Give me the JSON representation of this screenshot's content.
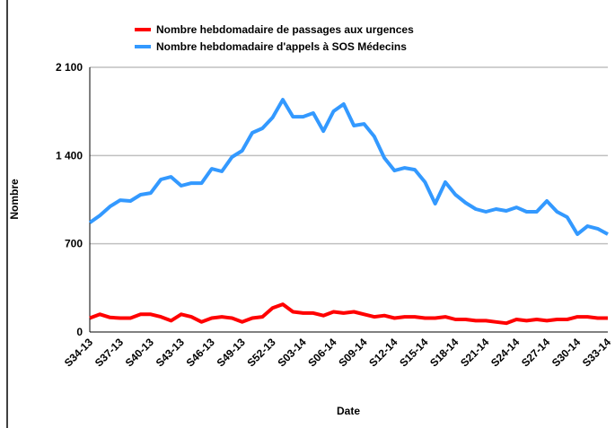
{
  "chart_data": {
    "type": "line",
    "x_label": "Date",
    "y_label": "Nombre",
    "categories": [
      "S34-13",
      null,
      null,
      "S37-13",
      null,
      null,
      "S40-13",
      null,
      null,
      "S43-13",
      null,
      null,
      "S46-13",
      null,
      null,
      "S49-13",
      null,
      null,
      "S52-13",
      null,
      null,
      "S03-14",
      null,
      null,
      "S06-14",
      null,
      null,
      "S09-14",
      null,
      null,
      "S12-14",
      null,
      null,
      "S15-14",
      null,
      null,
      "S18-14",
      null,
      null,
      "S21-14",
      null,
      null,
      "S24-14",
      null,
      null,
      "S27-14",
      null,
      null,
      "S30-14",
      null,
      null,
      "S33-14"
    ],
    "series": [
      {
        "name": "Nombre hebdomadaire de passages aux urgences",
        "color": "#ff0000",
        "values": [
          110,
          140,
          115,
          110,
          110,
          140,
          140,
          120,
          90,
          140,
          120,
          80,
          110,
          120,
          110,
          80,
          110,
          120,
          190,
          220,
          160,
          150,
          150,
          130,
          160,
          150,
          160,
          140,
          120,
          130,
          110,
          120,
          120,
          110,
          110,
          120,
          100,
          100,
          90,
          90,
          80,
          70,
          100,
          90,
          100,
          90,
          100,
          100,
          120,
          120,
          110,
          110
        ]
      },
      {
        "name": "Nombre hebdomadaire d'appels à SOS Médecins",
        "color": "#3399ff",
        "values": [
          868,
          925,
          996,
          1046,
          1039,
          1089,
          1103,
          1210,
          1231,
          1160,
          1181,
          1181,
          1295,
          1274,
          1388,
          1438,
          1580,
          1616,
          1701,
          1843,
          1708,
          1708,
          1737,
          1594,
          1751,
          1808,
          1637,
          1651,
          1552,
          1381,
          1281,
          1302,
          1288,
          1189,
          1018,
          1189,
          1089,
          1025,
          975,
          954,
          975,
          961,
          989,
          954,
          954,
          1039,
          954,
          911,
          776,
          840,
          819,
          776
        ]
      }
    ],
    "ylim": [
      0,
      2100
    ],
    "yticks": [
      0,
      700,
      {
        "value": 1400,
        "label": "1 400"
      },
      {
        "value": 2100,
        "label": "2 100"
      }
    ],
    "grid": true
  }
}
